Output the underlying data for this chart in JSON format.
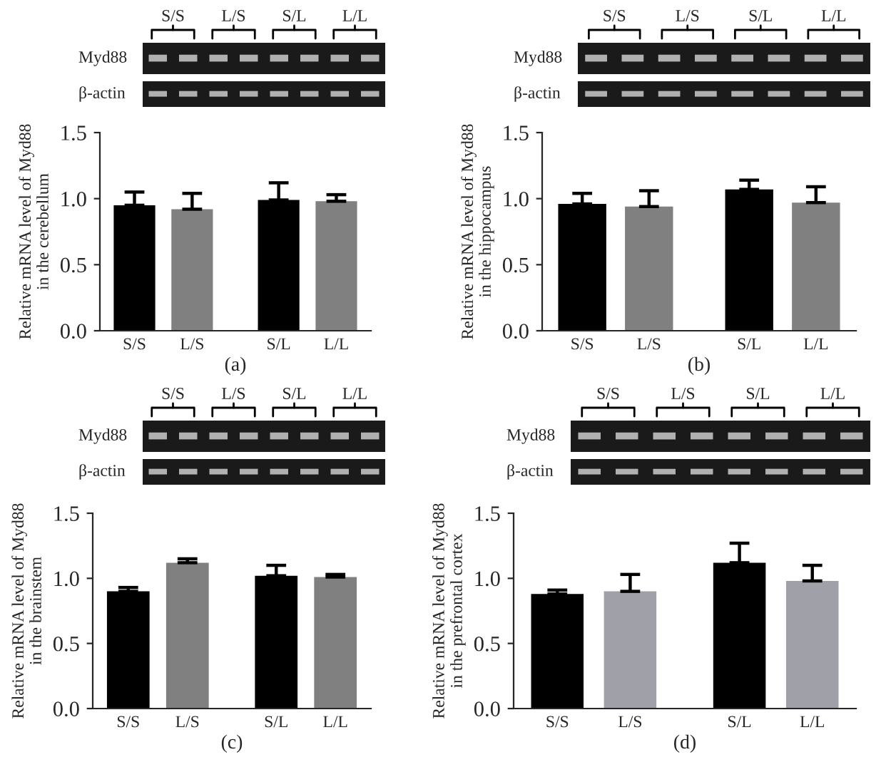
{
  "chart_data": [
    {
      "type": "bar",
      "xlabel": "(a)",
      "ylabel": "Relative mRNA level of Myd88\nin the cerebellum",
      "categories": [
        "S/S",
        "L/S",
        "S/L",
        "L/L"
      ],
      "values": [
        0.95,
        0.92,
        0.99,
        0.98
      ],
      "errors": [
        [
          0.95,
          1.05
        ],
        [
          0.92,
          1.04
        ],
        [
          0.99,
          1.12
        ],
        [
          0.98,
          1.03
        ]
      ],
      "colors": [
        "#000000",
        "#808080",
        "#000000",
        "#808080"
      ],
      "ylim": [
        0,
        1.5
      ],
      "yticks": [
        {
          "value": 0,
          "label": "0.0"
        },
        {
          "value": 0.5,
          "label": "0.5"
        },
        {
          "value": 1.0,
          "label": "1.0"
        },
        {
          "value": 1.5,
          "label": "1.5"
        }
      ],
      "annotations": [
        "S/S",
        "L/S",
        "S/L",
        "L/L",
        "Myd88",
        "β-actin"
      ]
    },
    {
      "type": "bar",
      "xlabel": "(b)",
      "ylabel": "Relative mRNA level of Myd88\nin the hippocampus",
      "categories": [
        "S/S",
        "L/S",
        "S/L",
        "L/L"
      ],
      "values": [
        0.96,
        0.94,
        1.07,
        0.97
      ],
      "errors": [
        [
          0.96,
          1.04
        ],
        [
          0.94,
          1.06
        ],
        [
          1.07,
          1.14
        ],
        [
          0.97,
          1.09
        ]
      ],
      "colors": [
        "#000000",
        "#808080",
        "#000000",
        "#808080"
      ],
      "ylim": [
        0,
        1.5
      ],
      "yticks": [
        {
          "value": 0,
          "label": "0.0"
        },
        {
          "value": 0.5,
          "label": "0.5"
        },
        {
          "value": 1.0,
          "label": "1.0"
        },
        {
          "value": 1.5,
          "label": "1.5"
        }
      ],
      "annotations": [
        "S/S",
        "L/S",
        "S/L",
        "L/L",
        "Myd88",
        "β-actin"
      ]
    },
    {
      "type": "bar",
      "xlabel": "(c)",
      "ylabel": "Relative mRNA level of Myd88\nin the brainstem",
      "categories": [
        "S/S",
        "L/S",
        "S/L",
        "L/L"
      ],
      "values": [
        0.9,
        1.12,
        1.02,
        1.01
      ],
      "errors": [
        [
          0.9,
          0.93
        ],
        [
          1.12,
          1.15
        ],
        [
          1.02,
          1.1
        ],
        [
          1.01,
          1.03
        ]
      ],
      "colors": [
        "#000000",
        "#808080",
        "#000000",
        "#808080"
      ],
      "ylim": [
        0,
        1.5
      ],
      "yticks": [
        {
          "value": 0,
          "label": "0.0"
        },
        {
          "value": 0.5,
          "label": "0.5"
        },
        {
          "value": 1.0,
          "label": "1.0"
        },
        {
          "value": 1.5,
          "label": "1.5"
        }
      ],
      "annotations": [
        "S/S",
        "L/S",
        "S/L",
        "L/L",
        "Myd88",
        "β-actin"
      ]
    },
    {
      "type": "bar",
      "xlabel": "(d)",
      "ylabel": "Relative mRNA level of Myd88\nin the prefrontal cortex",
      "categories": [
        "S/S",
        "L/S",
        "S/L",
        "L/L"
      ],
      "values": [
        0.88,
        0.9,
        1.12,
        0.98
      ],
      "errors": [
        [
          0.88,
          0.91
        ],
        [
          0.9,
          1.03
        ],
        [
          1.12,
          1.27
        ],
        [
          0.98,
          1.1
        ]
      ],
      "colors": [
        "#000000",
        "#a0a0a8",
        "#000000",
        "#a0a0a8"
      ],
      "ylim": [
        0,
        1.5
      ],
      "yticks": [
        {
          "value": 0,
          "label": "0.0"
        },
        {
          "value": 0.5,
          "label": "0.5"
        },
        {
          "value": 1.0,
          "label": "1.0"
        },
        {
          "value": 1.5,
          "label": "1.5"
        }
      ],
      "annotations": [
        "S/S",
        "L/S",
        "S/L",
        "L/L",
        "Myd88",
        "β-actin"
      ]
    }
  ]
}
